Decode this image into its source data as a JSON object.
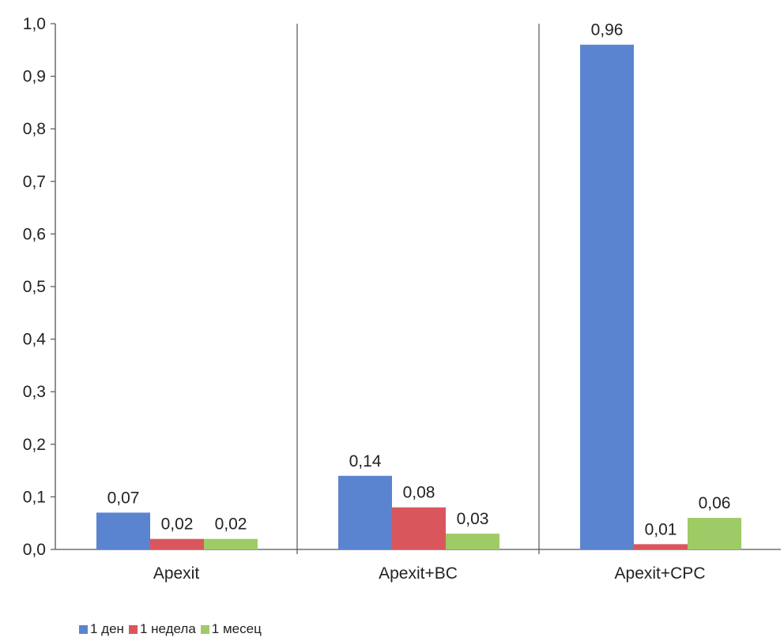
{
  "chart_data": {
    "type": "bar",
    "categories": [
      "Apexit",
      "Apexit+BC",
      "Apexit+CPC"
    ],
    "series": [
      {
        "name": "1 ден",
        "values": [
          0.07,
          0.14,
          0.96
        ],
        "labels": [
          "0,07",
          "0,14",
          "0,96"
        ],
        "color": "#5b84d0"
      },
      {
        "name": "1 недела",
        "values": [
          0.02,
          0.08,
          0.01
        ],
        "labels": [
          "0,02",
          "0,08",
          "0,01"
        ],
        "color": "#d9575c"
      },
      {
        "name": "1 месец",
        "values": [
          0.02,
          0.03,
          0.06
        ],
        "labels": [
          "0,02",
          "0,03",
          "0,06"
        ],
        "color": "#9fcb67"
      }
    ],
    "ylim": [
      0,
      1.0
    ],
    "yticks": [
      0.0,
      0.1,
      0.2,
      0.3,
      0.4,
      0.5,
      0.6,
      0.7,
      0.8,
      0.9,
      1.0
    ],
    "ytick_labels": [
      "0,0",
      "0,1",
      "0,2",
      "0,3",
      "0,4",
      "0,5",
      "0,6",
      "0,7",
      "0,8",
      "0,9",
      "1,0"
    ],
    "title": "",
    "xlabel": "",
    "ylabel": "",
    "grid": false,
    "category_separators": true,
    "legend_position": "bottom-left"
  }
}
